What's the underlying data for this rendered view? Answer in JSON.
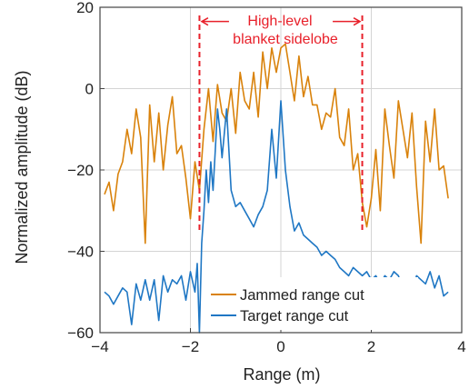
{
  "chart_data": {
    "type": "line",
    "xlabel": "Range (m)",
    "ylabel": "Normalized amplitude (dB)",
    "xlim": [
      -4,
      4
    ],
    "ylim": [
      -60,
      20
    ],
    "x_ticks": [
      -4,
      -2,
      0,
      2,
      4
    ],
    "y_ticks": [
      -60,
      -40,
      -20,
      0,
      20
    ],
    "x_tick_labels": [
      "−4",
      "−2",
      "0",
      "2",
      "4"
    ],
    "y_tick_labels": [
      "−60",
      "−40",
      "−20",
      "0",
      "20"
    ],
    "grid": true,
    "legend_position": "bottom-right",
    "series": [
      {
        "name": "Jammed range cut",
        "color": "#D9820B",
        "x": [
          -3.9,
          -3.8,
          -3.7,
          -3.6,
          -3.5,
          -3.4,
          -3.3,
          -3.2,
          -3.1,
          -3.0,
          -2.9,
          -2.8,
          -2.7,
          -2.6,
          -2.5,
          -2.4,
          -2.3,
          -2.2,
          -2.1,
          -2.0,
          -1.9,
          -1.8,
          -1.7,
          -1.6,
          -1.5,
          -1.4,
          -1.3,
          -1.2,
          -1.1,
          -1.0,
          -0.9,
          -0.8,
          -0.7,
          -0.6,
          -0.5,
          -0.4,
          -0.3,
          -0.2,
          -0.1,
          0.0,
          0.1,
          0.2,
          0.3,
          0.4,
          0.5,
          0.6,
          0.7,
          0.8,
          0.9,
          1.0,
          1.1,
          1.2,
          1.3,
          1.4,
          1.5,
          1.6,
          1.7,
          1.8,
          1.9,
          2.0,
          2.1,
          2.2,
          2.3,
          2.4,
          2.5,
          2.6,
          2.7,
          2.8,
          2.9,
          3.0,
          3.1,
          3.2,
          3.3,
          3.4,
          3.5,
          3.6,
          3.7
        ],
        "y": [
          -26,
          -23,
          -30,
          -21,
          -18,
          -10,
          -16,
          -5,
          -12,
          -38,
          -4,
          -18,
          -6,
          -20,
          -9,
          -2,
          -16,
          -14,
          -22,
          -32,
          -18,
          -25,
          -10,
          0,
          -13,
          1,
          -6,
          -8,
          0,
          -11,
          4,
          -3,
          -5,
          4,
          -7,
          9,
          0,
          10,
          4,
          10,
          11,
          4,
          -3,
          8,
          -2,
          3,
          -4,
          -4,
          -10,
          -6,
          -7,
          0,
          -12,
          -14,
          -5,
          -20,
          -16,
          -28,
          -34,
          -27,
          -15,
          -30,
          -5,
          -14,
          -22,
          -3,
          -10,
          -17,
          -6,
          -24,
          -38,
          -8,
          -18,
          -5,
          -20,
          -19,
          -27
        ]
      },
      {
        "name": "Target range cut",
        "color": "#1F77C4",
        "x": [
          -3.9,
          -3.8,
          -3.7,
          -3.6,
          -3.5,
          -3.4,
          -3.3,
          -3.2,
          -3.1,
          -3.0,
          -2.9,
          -2.8,
          -2.7,
          -2.6,
          -2.5,
          -2.4,
          -2.3,
          -2.2,
          -2.1,
          -2.0,
          -1.9,
          -1.85,
          -1.8,
          -1.75,
          -1.7,
          -1.65,
          -1.6,
          -1.55,
          -1.5,
          -1.45,
          -1.4,
          -1.35,
          -1.3,
          -1.2,
          -1.1,
          -1.0,
          -0.9,
          -0.8,
          -0.7,
          -0.6,
          -0.5,
          -0.4,
          -0.3,
          -0.2,
          -0.1,
          0.0,
          0.1,
          0.2,
          0.3,
          0.4,
          0.5,
          0.6,
          0.7,
          0.8,
          0.9,
          1.0,
          1.1,
          1.2,
          1.3,
          1.4,
          1.5,
          1.6,
          1.7,
          1.8,
          1.9,
          2.0,
          2.1,
          2.2,
          2.3,
          2.4,
          2.5,
          2.6,
          2.7,
          2.8,
          2.9,
          3.0,
          3.1,
          3.2,
          3.3,
          3.4,
          3.5,
          3.6,
          3.7
        ],
        "y": [
          -50,
          -51,
          -53,
          -51,
          -49,
          -50,
          -58,
          -48,
          -52,
          -47,
          -52,
          -47,
          -57,
          -46,
          -50,
          -47,
          -48,
          -46,
          -52,
          -45,
          -50,
          -43,
          -60,
          -38,
          -30,
          -20,
          -28,
          -18,
          -25,
          -15,
          -5,
          -10,
          -17,
          -5,
          -25,
          -29,
          -28,
          -30,
          -32,
          -34,
          -31,
          -29,
          -25,
          -10,
          -22,
          -3,
          -20,
          -29,
          -35,
          -33,
          -36,
          -37,
          -38,
          -39,
          -41,
          -40,
          -41,
          -42,
          -44,
          -45,
          -46,
          -44,
          -45,
          -46,
          -45,
          -47,
          -46,
          -48,
          -46,
          -47,
          -45,
          -46,
          -49,
          -47,
          -50,
          -46,
          -47,
          -48,
          -45,
          -49,
          -46,
          -51,
          -50
        ]
      }
    ],
    "annotations": [
      {
        "text_lines": [
          "High-level",
          "blanket sidelobe"
        ],
        "color": "#E8202A",
        "x_start": -1.75,
        "x_end": 1.75,
        "marker_x": [
          -1.8,
          1.8
        ],
        "marker_y_range": [
          -35,
          18
        ]
      }
    ]
  }
}
